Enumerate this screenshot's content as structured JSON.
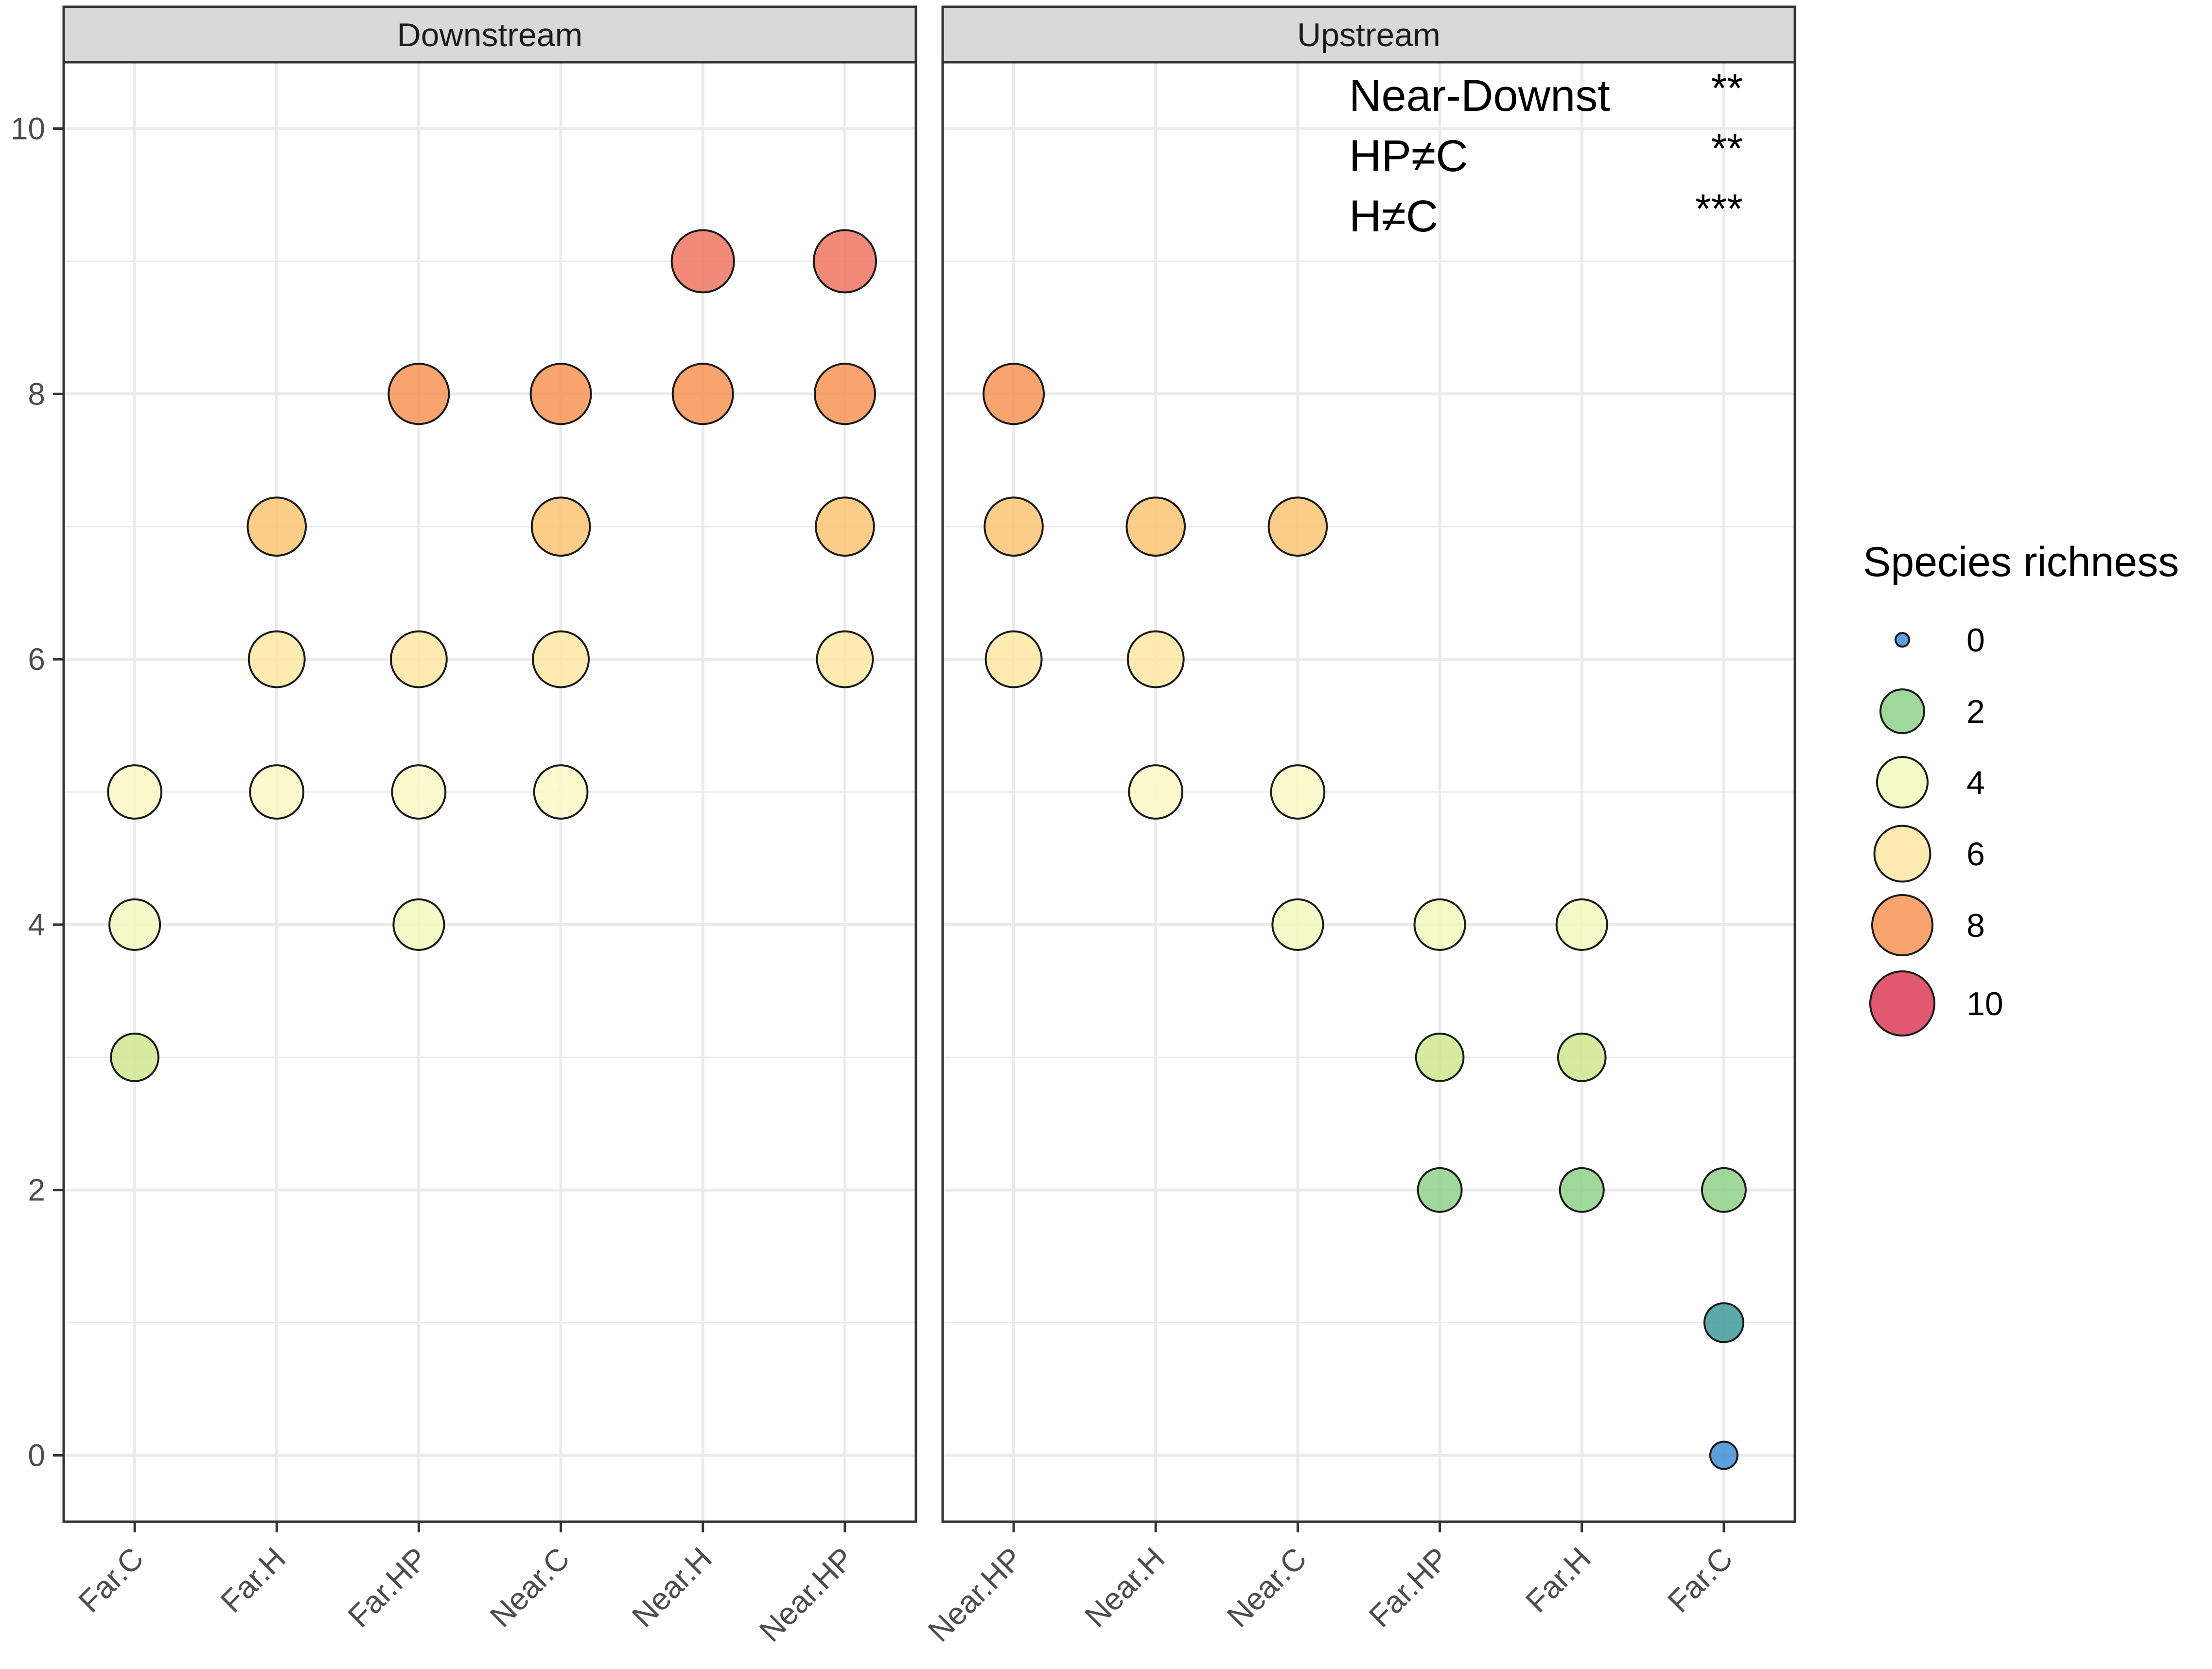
{
  "chart_data": {
    "type": "scatter",
    "subtype": "faceted bubble plot",
    "title": "",
    "xlabel": "",
    "ylabel": "",
    "ylim": [
      -0.5,
      10.5
    ],
    "yticks": [
      0,
      2,
      4,
      6,
      8,
      10
    ],
    "grid": true,
    "panels": [
      {
        "name": "Downstream",
        "categories": [
          "Far.C",
          "Far.H",
          "Far.HP",
          "Near.C",
          "Near.H",
          "Near.HP"
        ],
        "points": [
          {
            "x": "Far.C",
            "y": 5,
            "richness": 5
          },
          {
            "x": "Far.C",
            "y": 4,
            "richness": 4
          },
          {
            "x": "Far.C",
            "y": 3,
            "richness": 3
          },
          {
            "x": "Far.H",
            "y": 7,
            "richness": 7
          },
          {
            "x": "Far.H",
            "y": 6,
            "richness": 6
          },
          {
            "x": "Far.H",
            "y": 5,
            "richness": 5
          },
          {
            "x": "Far.HP",
            "y": 8,
            "richness": 8
          },
          {
            "x": "Far.HP",
            "y": 6,
            "richness": 6
          },
          {
            "x": "Far.HP",
            "y": 5,
            "richness": 5
          },
          {
            "x": "Far.HP",
            "y": 4,
            "richness": 4
          },
          {
            "x": "Near.C",
            "y": 8,
            "richness": 8
          },
          {
            "x": "Near.C",
            "y": 7,
            "richness": 7
          },
          {
            "x": "Near.C",
            "y": 6,
            "richness": 6
          },
          {
            "x": "Near.C",
            "y": 5,
            "richness": 5
          },
          {
            "x": "Near.H",
            "y": 9,
            "richness": 9
          },
          {
            "x": "Near.H",
            "y": 8,
            "richness": 8
          },
          {
            "x": "Near.HP",
            "y": 9,
            "richness": 9
          },
          {
            "x": "Near.HP",
            "y": 8,
            "richness": 8
          },
          {
            "x": "Near.HP",
            "y": 7,
            "richness": 7
          },
          {
            "x": "Near.HP",
            "y": 6,
            "richness": 6
          }
        ]
      },
      {
        "name": "Upstream",
        "categories": [
          "Near.HP",
          "Near.H",
          "Near.C",
          "Far.HP",
          "Far.H",
          "Far.C"
        ],
        "points": [
          {
            "x": "Near.HP",
            "y": 8,
            "richness": 8
          },
          {
            "x": "Near.HP",
            "y": 7,
            "richness": 7
          },
          {
            "x": "Near.HP",
            "y": 6,
            "richness": 6
          },
          {
            "x": "Near.H",
            "y": 7,
            "richness": 7
          },
          {
            "x": "Near.H",
            "y": 6,
            "richness": 6
          },
          {
            "x": "Near.H",
            "y": 5,
            "richness": 5
          },
          {
            "x": "Near.C",
            "y": 7,
            "richness": 7
          },
          {
            "x": "Near.C",
            "y": 5,
            "richness": 5
          },
          {
            "x": "Near.C",
            "y": 4,
            "richness": 4
          },
          {
            "x": "Far.HP",
            "y": 4,
            "richness": 4
          },
          {
            "x": "Far.HP",
            "y": 3,
            "richness": 3
          },
          {
            "x": "Far.HP",
            "y": 2,
            "richness": 2
          },
          {
            "x": "Far.H",
            "y": 4,
            "richness": 4
          },
          {
            "x": "Far.H",
            "y": 3,
            "richness": 3
          },
          {
            "x": "Far.H",
            "y": 2,
            "richness": 2
          },
          {
            "x": "Far.C",
            "y": 2,
            "richness": 2
          },
          {
            "x": "Far.C",
            "y": 1,
            "richness": 1
          },
          {
            "x": "Far.C",
            "y": 0,
            "richness": 0
          }
        ]
      }
    ],
    "annotations": [
      {
        "label": "Near-Downst",
        "signif": "**"
      },
      {
        "label": "HP≠C",
        "signif": "**"
      },
      {
        "label": "H≠C",
        "signif": "***"
      }
    ],
    "legend": {
      "title": "Species richness",
      "position": "right",
      "entries": [
        0,
        2,
        4,
        6,
        8,
        10
      ]
    },
    "colors": {
      "0": "#3f8fd6",
      "1": "#3f9a9a",
      "2": "#8fd08a",
      "3": "#cfe88f",
      "4": "#f3f7bd",
      "5": "#fbf8c6",
      "6": "#fde7a3",
      "7": "#fbc374",
      "8": "#f89455",
      "9": "#ee7662",
      "10": "#dc3c56",
      "strip_fill": "#d9d9d9",
      "grid": "#ebebeb",
      "axis_text": "#4d4d4d"
    }
  }
}
